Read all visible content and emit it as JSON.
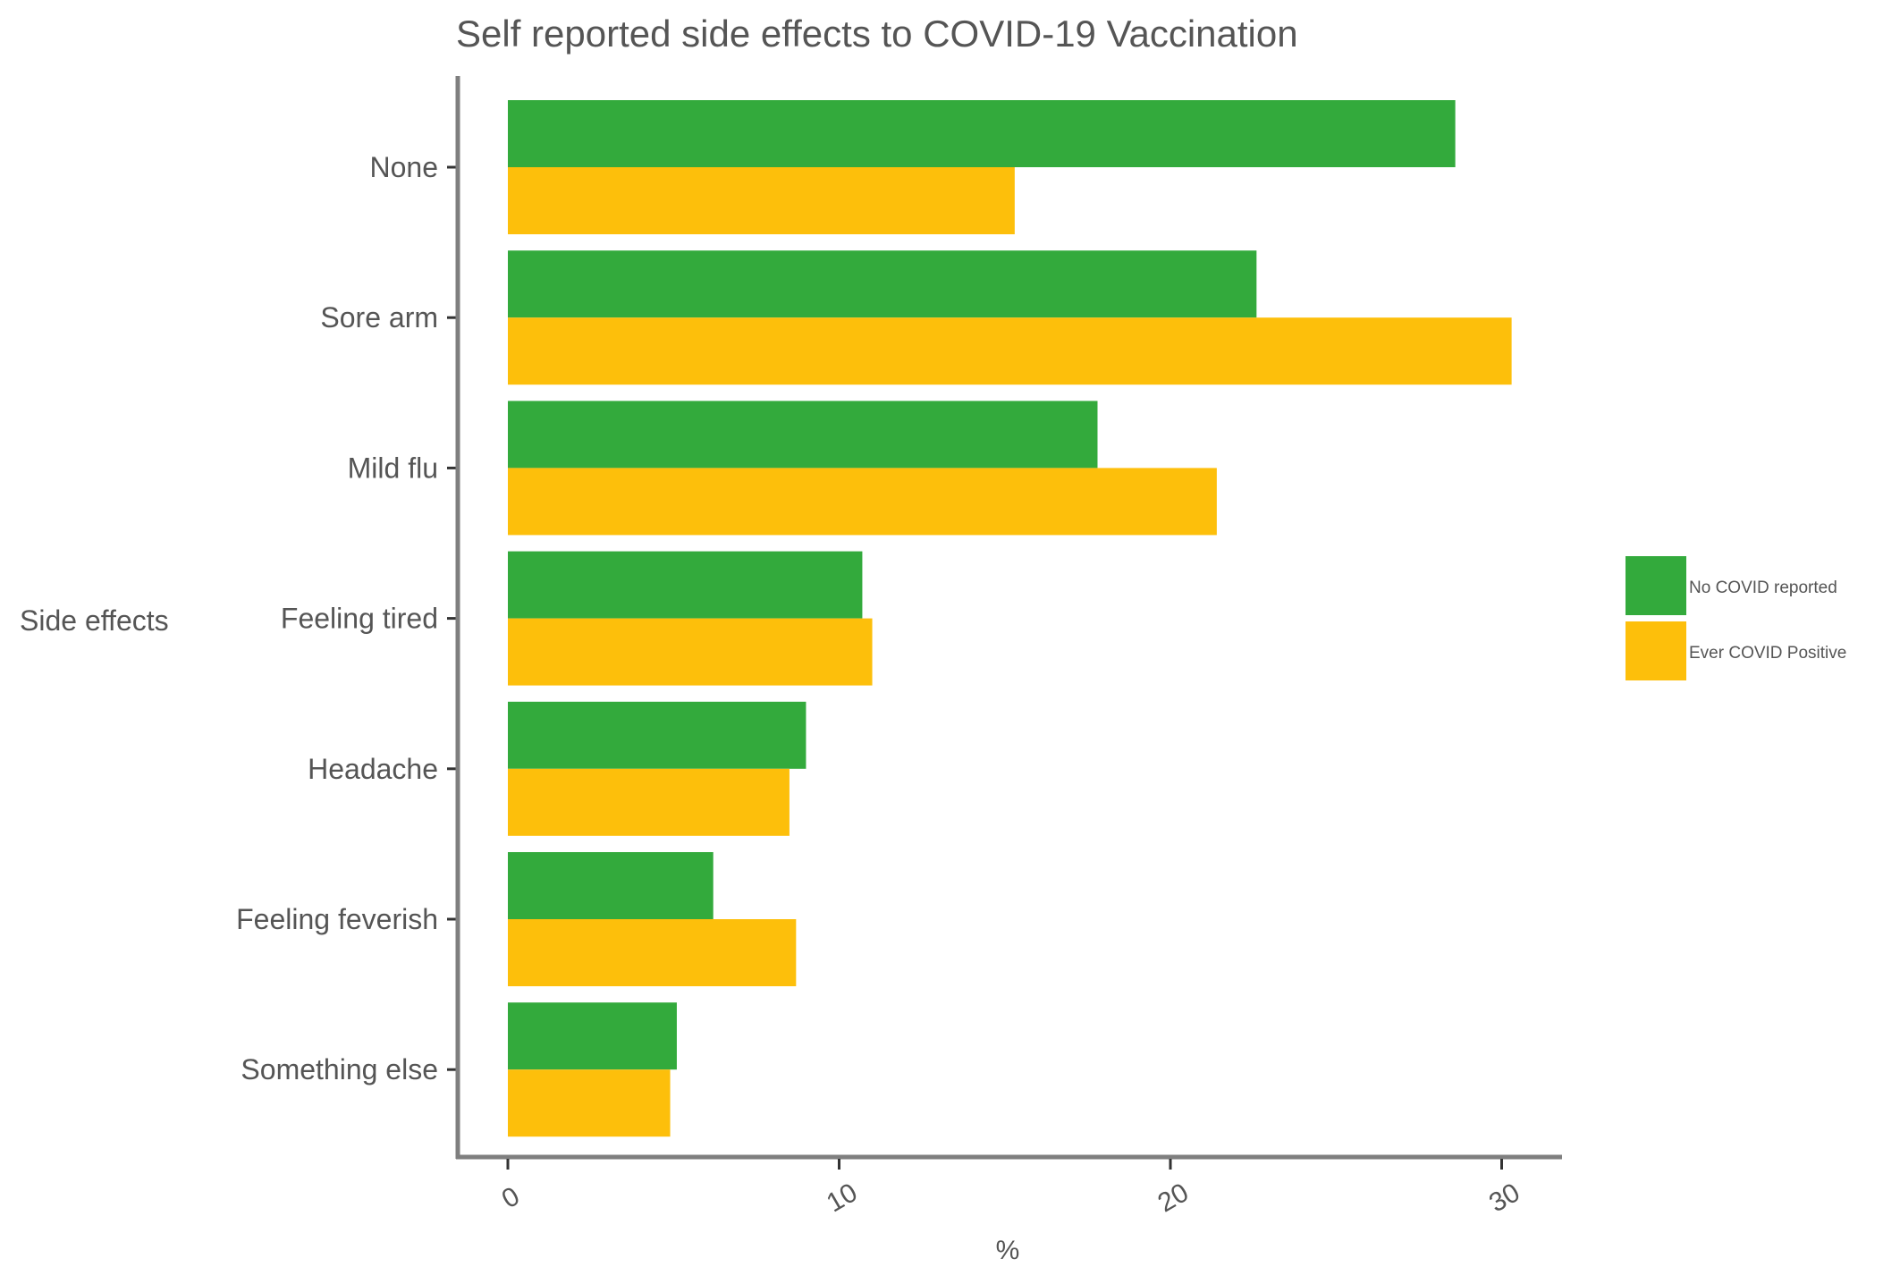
{
  "chart_data": {
    "type": "bar",
    "orientation": "horizontal",
    "title": "Self reported side effects to COVID-19 Vaccination",
    "xlabel": "%",
    "ylabel": "Side effects",
    "xlim": [
      0,
      31.6
    ],
    "xticks": [
      "0",
      "10",
      "20",
      "30"
    ],
    "xtick_values": [
      0,
      10,
      20,
      30
    ],
    "grid": false,
    "legend": "right",
    "categories": [
      "None",
      "Sore arm",
      "Mild flu",
      "Feeling tired",
      "Headache",
      "Feeling feverish",
      "Something else"
    ],
    "series": [
      {
        "name": "No COVID reported",
        "color": "#33aa3c",
        "values": [
          28.6,
          22.6,
          17.8,
          10.7,
          9.0,
          6.2,
          5.1
        ]
      },
      {
        "name": "Ever COVID Positive",
        "color": "#fdbf0b",
        "values": [
          15.3,
          30.3,
          21.4,
          11.0,
          8.5,
          8.7,
          4.9
        ]
      }
    ]
  }
}
